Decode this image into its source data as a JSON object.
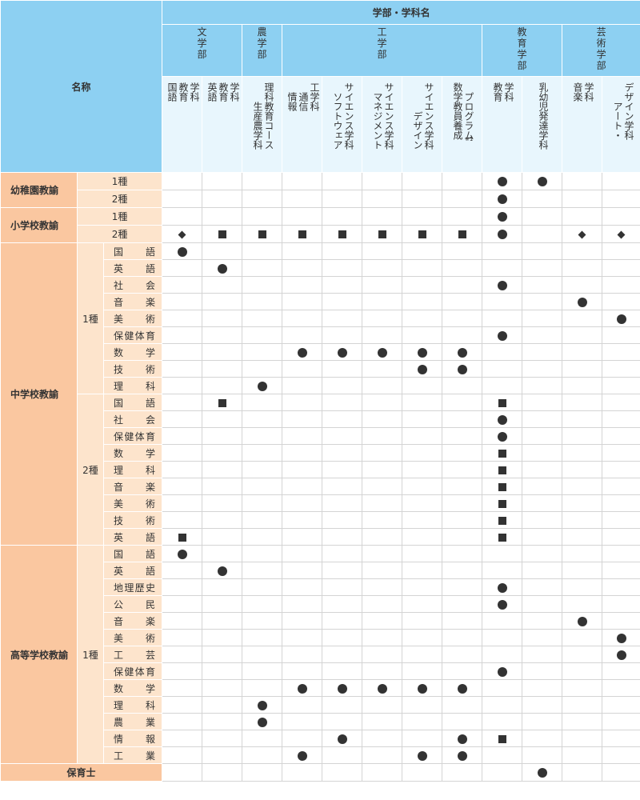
{
  "header": {
    "name_label": "名称",
    "group_label": "学部・学科名"
  },
  "faculties": [
    {
      "name": "文学部",
      "lines": [
        "文",
        "学",
        "部"
      ]
    },
    {
      "name": "農学部",
      "lines": [
        "農",
        "学",
        "部"
      ]
    },
    {
      "name": "工学部",
      "lines": [
        "工",
        "学",
        "部"
      ]
    },
    {
      "name": "教育学部",
      "lines": [
        "教",
        "育",
        "学",
        "部"
      ]
    },
    {
      "name": "芸術学部",
      "lines": [
        "芸",
        "術",
        "学",
        "部"
      ]
    }
  ],
  "departments": [
    {
      "cols": [
        "国語",
        "教育",
        "学科"
      ]
    },
    {
      "cols": [
        "英語",
        "教育",
        "学科"
      ]
    },
    {
      "cols": [
        "生産農学科",
        "理科教育コース"
      ]
    },
    {
      "cols": [
        "情報",
        "通信",
        "工学科"
      ]
    },
    {
      "cols": [
        "ソフトウェア",
        "サイエンス学科"
      ]
    },
    {
      "cols": [
        "マネジメント",
        "サイエンス学科"
      ]
    },
    {
      "cols": [
        "デザイン",
        "サイエンス学科"
      ]
    },
    {
      "cols": [
        "数学教員養成",
        "プログラム"
      ],
      "note": "※1"
    },
    {
      "cols": [
        "教育",
        "学科"
      ]
    },
    {
      "cols": [
        "乳幼児発達学科"
      ]
    },
    {
      "cols": [
        "音楽",
        "学科"
      ]
    },
    {
      "cols": [
        "アート・",
        "デザイン学科"
      ]
    }
  ],
  "rows": [
    {
      "license": "幼稚園教諭",
      "level": "1種",
      "marks": [
        "",
        "",
        "",
        "",
        "",
        "",
        "",
        "",
        "circle",
        "circle",
        "",
        ""
      ]
    },
    {
      "license": "",
      "level": "2種",
      "marks": [
        "",
        "",
        "",
        "",
        "",
        "",
        "",
        "",
        "circle",
        "",
        "",
        ""
      ]
    },
    {
      "license": "小学校教諭",
      "level": "1種",
      "marks": [
        "",
        "",
        "",
        "",
        "",
        "",
        "",
        "",
        "circle",
        "",
        "",
        ""
      ]
    },
    {
      "license": "",
      "level": "2種",
      "marks": [
        "diamond",
        "square",
        "square",
        "square",
        "square",
        "square",
        "square",
        "square",
        "circle",
        "",
        "diamond",
        "diamond"
      ]
    },
    {
      "license": "中学校教諭",
      "level": "1種",
      "subject": "国語",
      "marks": [
        "circle",
        "",
        "",
        "",
        "",
        "",
        "",
        "",
        "",
        "",
        "",
        ""
      ]
    },
    {
      "subject": "英語",
      "marks": [
        "",
        "circle",
        "",
        "",
        "",
        "",
        "",
        "",
        "",
        "",
        "",
        ""
      ]
    },
    {
      "subject": "社会",
      "marks": [
        "",
        "",
        "",
        "",
        "",
        "",
        "",
        "",
        "circle",
        "",
        "",
        ""
      ]
    },
    {
      "subject": "音楽",
      "marks": [
        "",
        "",
        "",
        "",
        "",
        "",
        "",
        "",
        "",
        "",
        "circle",
        ""
      ]
    },
    {
      "subject": "美術",
      "marks": [
        "",
        "",
        "",
        "",
        "",
        "",
        "",
        "",
        "",
        "",
        "",
        "circle"
      ]
    },
    {
      "subject": "保健体育",
      "marks": [
        "",
        "",
        "",
        "",
        "",
        "",
        "",
        "",
        "circle",
        "",
        "",
        ""
      ]
    },
    {
      "subject": "数学",
      "marks": [
        "",
        "",
        "",
        "circle",
        "circle",
        "circle",
        "circle",
        "circle",
        "",
        "",
        "",
        ""
      ]
    },
    {
      "subject": "技術",
      "marks": [
        "",
        "",
        "",
        "",
        "",
        "",
        "circle",
        "circle",
        "",
        "",
        "",
        ""
      ]
    },
    {
      "subject": "理科",
      "marks": [
        "",
        "",
        "circle",
        "",
        "",
        "",
        "",
        "",
        "",
        "",
        "",
        ""
      ]
    },
    {
      "level": "2種",
      "subject": "国語",
      "marks": [
        "",
        "square",
        "",
        "",
        "",
        "",
        "",
        "",
        "square",
        "",
        "",
        ""
      ]
    },
    {
      "subject": "社会",
      "marks": [
        "",
        "",
        "",
        "",
        "",
        "",
        "",
        "",
        "circle",
        "",
        "",
        ""
      ]
    },
    {
      "subject": "保健体育",
      "marks": [
        "",
        "",
        "",
        "",
        "",
        "",
        "",
        "",
        "circle",
        "",
        "",
        ""
      ]
    },
    {
      "subject": "数学",
      "marks": [
        "",
        "",
        "",
        "",
        "",
        "",
        "",
        "",
        "square",
        "",
        "",
        ""
      ]
    },
    {
      "subject": "理科",
      "marks": [
        "",
        "",
        "",
        "",
        "",
        "",
        "",
        "",
        "square",
        "",
        "",
        ""
      ]
    },
    {
      "subject": "音楽",
      "marks": [
        "",
        "",
        "",
        "",
        "",
        "",
        "",
        "",
        "square",
        "",
        "",
        ""
      ]
    },
    {
      "subject": "美術",
      "marks": [
        "",
        "",
        "",
        "",
        "",
        "",
        "",
        "",
        "square",
        "",
        "",
        ""
      ]
    },
    {
      "subject": "技術",
      "marks": [
        "",
        "",
        "",
        "",
        "",
        "",
        "",
        "",
        "square",
        "",
        "",
        ""
      ]
    },
    {
      "subject": "英語",
      "marks": [
        "square",
        "",
        "",
        "",
        "",
        "",
        "",
        "",
        "square",
        "",
        "",
        ""
      ]
    },
    {
      "license": "高等学校教諭",
      "level": "1種",
      "subject": "国語",
      "marks": [
        "circle",
        "",
        "",
        "",
        "",
        "",
        "",
        "",
        "",
        "",
        "",
        ""
      ]
    },
    {
      "subject": "英語",
      "marks": [
        "",
        "circle",
        "",
        "",
        "",
        "",
        "",
        "",
        "",
        "",
        "",
        ""
      ]
    },
    {
      "subject": "地理歴史",
      "marks": [
        "",
        "",
        "",
        "",
        "",
        "",
        "",
        "",
        "circle",
        "",
        "",
        ""
      ]
    },
    {
      "subject": "公民",
      "marks": [
        "",
        "",
        "",
        "",
        "",
        "",
        "",
        "",
        "circle",
        "",
        "",
        ""
      ]
    },
    {
      "subject": "音楽",
      "marks": [
        "",
        "",
        "",
        "",
        "",
        "",
        "",
        "",
        "",
        "",
        "circle",
        ""
      ]
    },
    {
      "subject": "美術",
      "marks": [
        "",
        "",
        "",
        "",
        "",
        "",
        "",
        "",
        "",
        "",
        "",
        "circle"
      ]
    },
    {
      "subject": "工芸",
      "marks": [
        "",
        "",
        "",
        "",
        "",
        "",
        "",
        "",
        "",
        "",
        "",
        "circle"
      ]
    },
    {
      "subject": "保健体育",
      "marks": [
        "",
        "",
        "",
        "",
        "",
        "",
        "",
        "",
        "circle",
        "",
        "",
        ""
      ]
    },
    {
      "subject": "数学",
      "marks": [
        "",
        "",
        "",
        "circle",
        "circle",
        "circle",
        "circle",
        "circle",
        "",
        "",
        "",
        ""
      ]
    },
    {
      "subject": "理科",
      "marks": [
        "",
        "",
        "circle",
        "",
        "",
        "",
        "",
        "",
        "",
        "",
        "",
        ""
      ]
    },
    {
      "subject": "農業",
      "marks": [
        "",
        "",
        "circle",
        "",
        "",
        "",
        "",
        "",
        "",
        "",
        "",
        ""
      ]
    },
    {
      "subject": "情報",
      "marks": [
        "",
        "",
        "",
        "",
        "circle",
        "",
        "",
        "circle",
        "square",
        "",
        "",
        ""
      ]
    },
    {
      "subject": "工業",
      "marks": [
        "",
        "",
        "",
        "circle",
        "",
        "",
        "circle",
        "circle",
        "",
        "",
        "",
        ""
      ]
    },
    {
      "license": "保育士",
      "marks": [
        "",
        "",
        "",
        "",
        "",
        "",
        "",
        "",
        "",
        "circle",
        "",
        ""
      ]
    }
  ]
}
